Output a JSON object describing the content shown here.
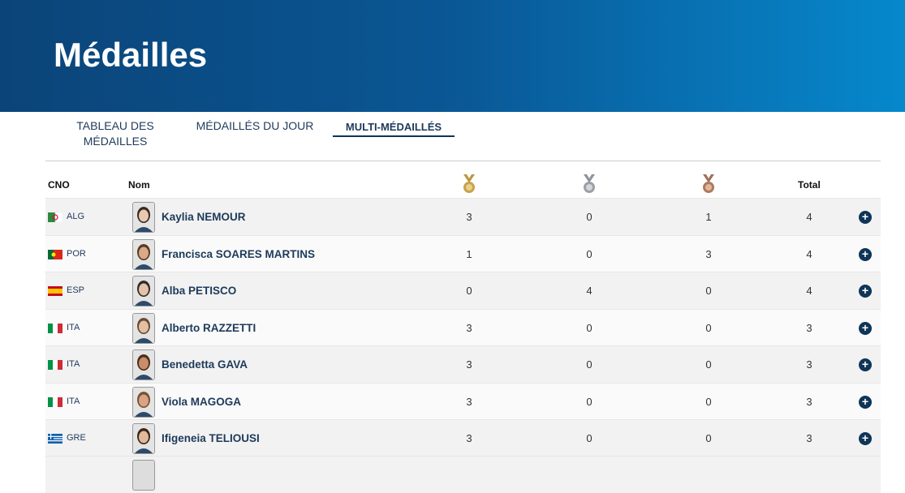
{
  "header": {
    "title": "Médailles"
  },
  "tabs": [
    "TABLEAU DES MÉDAILLES",
    "MÉDAILLÉS DU JOUR",
    "MULTI-MÉDAILLÉS"
  ],
  "table": {
    "headers": {
      "noc": "CNO",
      "name": "Nom",
      "total": "Total"
    },
    "rows": [
      {
        "noc": "ALG",
        "name": "Kaylia NEMOUR",
        "gold": "3",
        "silver": "0",
        "bronze": "1",
        "total": "4"
      },
      {
        "noc": "POR",
        "name": "Francisca SOARES MARTINS",
        "gold": "1",
        "silver": "0",
        "bronze": "3",
        "total": "4"
      },
      {
        "noc": "ESP",
        "name": "Alba PETISCO",
        "gold": "0",
        "silver": "4",
        "bronze": "0",
        "total": "4"
      },
      {
        "noc": "ITA",
        "name": "Alberto RAZZETTI",
        "gold": "3",
        "silver": "0",
        "bronze": "0",
        "total": "3"
      },
      {
        "noc": "ITA",
        "name": "Benedetta GAVA",
        "gold": "3",
        "silver": "0",
        "bronze": "0",
        "total": "3"
      },
      {
        "noc": "ITA",
        "name": "Viola MAGOGA",
        "gold": "3",
        "silver": "0",
        "bronze": "0",
        "total": "3"
      },
      {
        "noc": "GRE",
        "name": "Ifigeneia TELIOUSI",
        "gold": "3",
        "silver": "0",
        "bronze": "0",
        "total": "3"
      }
    ]
  }
}
